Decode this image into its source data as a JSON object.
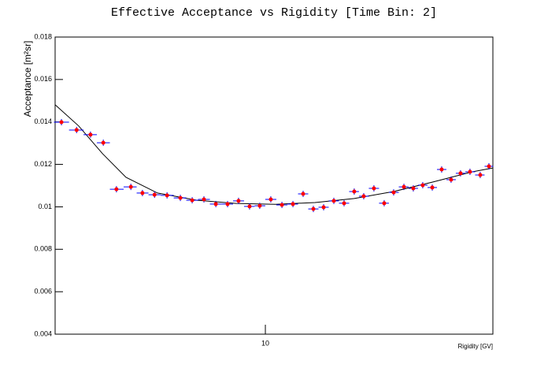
{
  "chart_data": {
    "type": "scatter",
    "title": "Effective Acceptance vs Rigidity [Time Bin: 2]",
    "x_label": "Rigidity [GV]",
    "y_label": "Acceptance [m²sr]",
    "log_x": true,
    "xlim": [
      2.85,
      38.9
    ],
    "xticks": [
      10
    ],
    "ylim": [
      0.004,
      0.018
    ],
    "yticks": [
      0.004,
      0.006,
      0.008,
      0.01,
      0.012,
      0.014,
      0.016,
      0.018
    ],
    "x": [
      2.96,
      3.24,
      3.52,
      3.8,
      4.11,
      4.48,
      4.8,
      5.16,
      5.56,
      6.02,
      6.46,
      6.93,
      7.44,
      7.98,
      8.52,
      9.1,
      9.67,
      10.33,
      11.04,
      11.79,
      12.53,
      13.32,
      14.16,
      15.05,
      16.0,
      17.0,
      17.99,
      19.12,
      20.33,
      21.51,
      22.87,
      24.19,
      25.59,
      27.09,
      28.65,
      30.31,
      32.07,
      33.93,
      36.07,
      37.99
    ],
    "values": [
      0.01399,
      0.01362,
      0.0134,
      0.01302,
      0.01083,
      0.01094,
      0.01065,
      0.01057,
      0.01054,
      0.01042,
      0.01031,
      0.01035,
      0.01013,
      0.01013,
      0.01028,
      0.01002,
      0.01005,
      0.01035,
      0.01009,
      0.01013,
      0.01061,
      0.0099,
      0.00998,
      0.01028,
      0.01017,
      0.01072,
      0.0105,
      0.01087,
      0.01017,
      0.01068,
      0.01094,
      0.01087,
      0.01102,
      0.01091,
      0.01176,
      0.01128,
      0.01158,
      0.01165,
      0.0115,
      0.01191
    ],
    "marker_color": "#ff0000",
    "error_color": "#0000ff",
    "fit": {
      "color": "#000000",
      "x": [
        2.85,
        3.28,
        3.78,
        4.35,
        5.25,
        6.65,
        8.4,
        10.63,
        13.45,
        17.0,
        21.51,
        27.21,
        34.41,
        38.9
      ],
      "values": [
        0.01481,
        0.01381,
        0.01251,
        0.01139,
        0.01065,
        0.01031,
        0.01016,
        0.01012,
        0.0102,
        0.01039,
        0.01072,
        0.01117,
        0.01165,
        0.01183
      ]
    }
  }
}
